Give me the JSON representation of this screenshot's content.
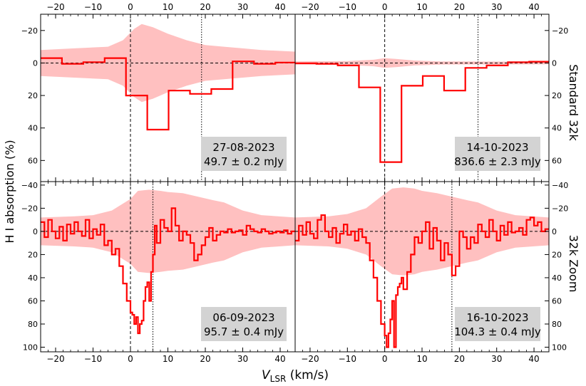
{
  "figure": {
    "xlabel_main": "V",
    "xlabel_sub": "LSR",
    "xlabel_unit": " (km/s)",
    "ylabel": "H I absorption (%)",
    "row_labels": [
      "Standard 32k",
      "32k Zoom"
    ]
  },
  "colors": {
    "line": "#ff0000",
    "band": "#ffc0c0",
    "box": "#d3d3d3"
  },
  "chart_data": [
    {
      "type": "line",
      "style": "step",
      "panel": "top-left",
      "xlim": [
        -24,
        44
      ],
      "ylim": [
        -30,
        73
      ],
      "y_inverted": true,
      "xticks": [
        -20,
        -10,
        0,
        10,
        20,
        30,
        40
      ],
      "yticks": [
        -20,
        0,
        20,
        40,
        60
      ],
      "vlines": {
        "dashed": 0,
        "dotted": 19
      },
      "annotation": [
        "27-08-2023",
        "49.7 ± 0.2 mJy"
      ],
      "series": [
        {
          "x": [
            -24,
            -18.3,
            -12.6,
            -6.9,
            -1.2,
            4.5,
            10.2,
            15.9,
            21.6,
            27.3,
            33.0,
            38.7,
            44
          ],
          "y": [
            -3,
            0.5,
            -0.5,
            -3,
            20,
            41,
            17,
            19,
            16,
            -1,
            0.5,
            -0.3,
            -0.5
          ]
        }
      ],
      "band_x": [
        -24,
        -15,
        -6,
        -2,
        1,
        3,
        6,
        10,
        15,
        20,
        25,
        30,
        35,
        44
      ],
      "band_upper": [
        -8,
        -9,
        -10,
        -14,
        -21,
        -24,
        -22,
        -18,
        -14,
        -11,
        -10,
        -9,
        -8,
        -7
      ],
      "band_lower": [
        8,
        9,
        10,
        14,
        21,
        24,
        22,
        18,
        14,
        11,
        10,
        9,
        8,
        7
      ]
    },
    {
      "type": "line",
      "style": "step",
      "panel": "top-right",
      "xlim": [
        -24,
        44
      ],
      "ylim": [
        -30,
        73
      ],
      "y_inverted": true,
      "xticks": [
        -20,
        -10,
        0,
        10,
        20,
        30,
        40
      ],
      "yticks": [
        -20,
        0,
        20,
        40,
        60
      ],
      "vlines": {
        "dashed": 0,
        "dotted": 25
      },
      "annotation": [
        "14-10-2023",
        "836.6 ± 2.3 mJy"
      ],
      "series": [
        {
          "x": [
            -24,
            -18.3,
            -12.6,
            -6.9,
            -1.2,
            4.5,
            10.2,
            15.9,
            21.6,
            27.3,
            33.0,
            38.7,
            44
          ],
          "y": [
            0.2,
            0.5,
            1.5,
            15,
            61,
            14,
            8,
            17,
            3,
            1.5,
            -0.5,
            -0.8,
            0
          ]
        }
      ],
      "band_x": [
        -24,
        -10,
        -3,
        0,
        3,
        8,
        15,
        44
      ],
      "band_upper": [
        -1,
        -1.2,
        -2,
        -3,
        -2.5,
        -1.5,
        -1,
        -0.8
      ],
      "band_lower": [
        1,
        1.2,
        2,
        3,
        2.5,
        1.5,
        1,
        0.8
      ]
    },
    {
      "type": "line",
      "style": "step",
      "panel": "bottom-left",
      "xlim": [
        -24,
        44
      ],
      "ylim": [
        -43,
        104
      ],
      "y_inverted": true,
      "xticks": [
        -20,
        -10,
        0,
        10,
        20,
        30,
        40
      ],
      "yticks": [
        -40,
        -20,
        0,
        20,
        40,
        60,
        80,
        100
      ],
      "vlines": {
        "dashed": 0,
        "dotted": 6
      },
      "annotation": [
        "06-09-2023",
        "95.7 ± 0.4 mJy"
      ],
      "series": [
        {
          "x": [
            -24,
            -23,
            -22,
            -21,
            -20,
            -19,
            -18,
            -17,
            -16,
            -15,
            -14,
            -13,
            -12,
            -11,
            -10,
            -9,
            -8,
            -7,
            -6,
            -5,
            -4,
            -3,
            -2,
            -1,
            0,
            0.5,
            1,
            1.5,
            2,
            2.5,
            3,
            3.5,
            4,
            4.5,
            5,
            5.5,
            6,
            6.5,
            7,
            8,
            9,
            10,
            11,
            12,
            13,
            14,
            15,
            16,
            17,
            18,
            19,
            20,
            21,
            22,
            23,
            24,
            25,
            26,
            27,
            28,
            29,
            30,
            31,
            32,
            33,
            34,
            35,
            36,
            37,
            38,
            39,
            40,
            41,
            42,
            43,
            44
          ],
          "y": [
            -8,
            5,
            -10,
            0,
            6,
            -4,
            8,
            -6,
            2,
            -8,
            0,
            4,
            -10,
            6,
            -2,
            3,
            -6,
            12,
            8,
            20,
            15,
            30,
            45,
            60,
            70,
            72,
            80,
            74,
            88,
            80,
            77,
            60,
            48,
            44,
            60,
            35,
            20,
            -5,
            10,
            -10,
            -3,
            0,
            -20,
            -5,
            8,
            0,
            3,
            10,
            25,
            20,
            12,
            5,
            -3,
            8,
            3,
            0,
            1,
            -2,
            1,
            0,
            -1,
            3,
            -5,
            -2,
            0,
            1,
            -2,
            0,
            2,
            1,
            0,
            1,
            -1,
            2,
            0,
            0
          ]
        }
      ],
      "band_x": [
        -24,
        -15,
        -10,
        -5,
        0,
        2,
        5,
        8,
        10,
        14,
        18,
        22,
        25,
        30,
        35,
        44
      ],
      "band_upper": [
        -12,
        -13,
        -14,
        -18,
        -28,
        -35,
        -36,
        -35,
        -34,
        -33,
        -30,
        -27,
        -25,
        -18,
        -14,
        -12
      ],
      "band_lower": [
        12,
        13,
        14,
        18,
        28,
        35,
        36,
        35,
        34,
        33,
        30,
        27,
        25,
        18,
        14,
        12
      ]
    },
    {
      "type": "line",
      "style": "step",
      "panel": "bottom-right",
      "xlim": [
        -24,
        44
      ],
      "ylim": [
        -43,
        104
      ],
      "y_inverted": true,
      "xticks": [
        -20,
        -10,
        0,
        10,
        20,
        30,
        40
      ],
      "yticks": [
        -40,
        -20,
        0,
        20,
        40,
        60,
        80,
        100
      ],
      "vlines": {
        "dashed": 0,
        "dotted": 18
      },
      "annotation": [
        "16-10-2023",
        "104.3 ± 0.4 mJy"
      ],
      "series": [
        {
          "x": [
            -24,
            -23,
            -22,
            -21,
            -20,
            -19,
            -18,
            -17,
            -16,
            -15,
            -14,
            -13,
            -12,
            -11,
            -10,
            -9,
            -8,
            -7,
            -6,
            -5,
            -4,
            -3,
            -2,
            -1,
            0,
            0.5,
            1,
            1.5,
            2,
            2.5,
            3,
            3.5,
            4,
            4.5,
            5,
            6,
            7,
            8,
            9,
            10,
            11,
            12,
            13,
            14,
            15,
            16,
            17,
            18,
            19,
            20,
            21,
            22,
            23,
            24,
            25,
            26,
            27,
            28,
            29,
            30,
            31,
            32,
            33,
            34,
            35,
            36,
            37,
            38,
            39,
            40,
            41,
            42,
            43,
            44
          ],
          "y": [
            8,
            -5,
            3,
            -8,
            2,
            6,
            -10,
            -14,
            0,
            5,
            -3,
            10,
            2,
            -6,
            3,
            0,
            8,
            -2,
            5,
            10,
            25,
            40,
            60,
            80,
            90,
            100,
            88,
            76,
            60,
            100,
            55,
            48,
            45,
            40,
            50,
            35,
            20,
            5,
            10,
            0,
            -8,
            15,
            -3,
            8,
            25,
            10,
            20,
            38,
            30,
            0,
            5,
            15,
            5,
            10,
            -6,
            0,
            5,
            -10,
            0,
            8,
            -5,
            3,
            -8,
            1,
            0,
            -3,
            3,
            -10,
            -12,
            -5,
            -8,
            0,
            -2,
            0
          ]
        }
      ],
      "band_x": [
        -24,
        -15,
        -10,
        -5,
        -1,
        2,
        5,
        8,
        10,
        14,
        18,
        22,
        25,
        30,
        35,
        44
      ],
      "band_upper": [
        -12,
        -13,
        -15,
        -20,
        -30,
        -37,
        -38,
        -37,
        -35,
        -33,
        -30,
        -27,
        -25,
        -18,
        -14,
        -12
      ],
      "band_lower": [
        12,
        13,
        15,
        20,
        30,
        37,
        38,
        37,
        35,
        33,
        30,
        27,
        25,
        18,
        14,
        12
      ]
    }
  ]
}
